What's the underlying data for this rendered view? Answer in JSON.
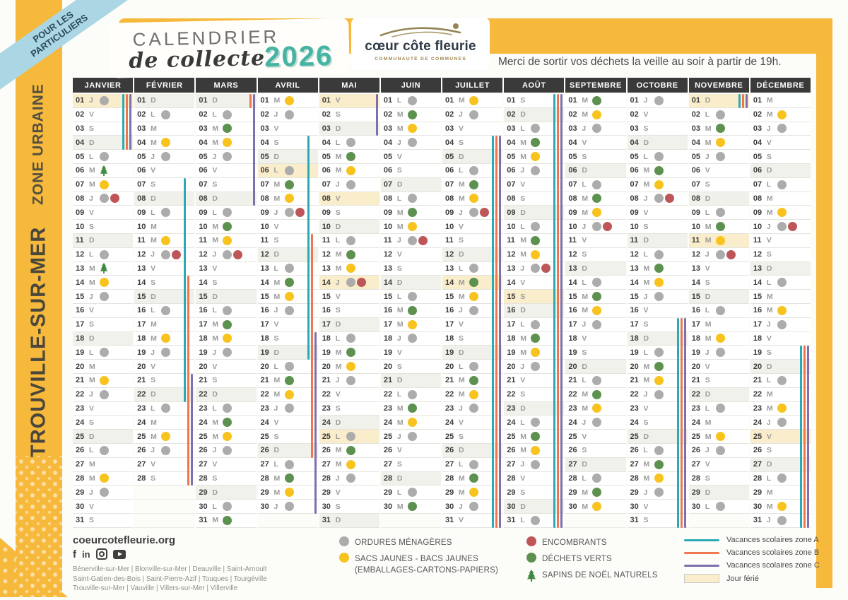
{
  "ribbon": "POUR LES PARTICULIERS",
  "sidebar": {
    "city": "TROUVILLE-SUR-MER",
    "zone": "ZONE URBAINE"
  },
  "header": {
    "title_line1": "CALENDRIER",
    "title_line2": "de collecte",
    "title_year": "2026",
    "logo_name": "cœur côte fleurie",
    "logo_sub": "COMMUNAUTÉ DE COMMUNES",
    "notice": "Merci de sortir vos déchets la veille au soir à partir de 19h."
  },
  "colors": {
    "band_yellow": "#F6B93C",
    "ribbon_blue": "#ABD7E4",
    "ordures": "#ACACAC",
    "sacs_jaunes": "#F8C31D",
    "dechets_verts": "#5D9150",
    "encombrants": "#BE5558",
    "sapins": "#3E8A42",
    "zone_a": "#2BAAB5",
    "zone_b": "#F0764F",
    "zone_c": "#7E6FAE",
    "jour_ferie": "#FAEDCB"
  },
  "calendar": {
    "months": [
      {
        "name": "JANVIER",
        "n": 31,
        "w": "JVSDLMMJVSDLMMJVSDLMMJVSDLMMJVS",
        "om": [
          1,
          5,
          8,
          12,
          15,
          19,
          22,
          26,
          29
        ],
        "rec": [
          7,
          14,
          21,
          28
        ],
        "dv": [],
        "enc": [
          8
        ],
        "sap": [
          6,
          13
        ],
        "hol": [
          1
        ],
        "vac": {
          "A": [
            [
              1,
              4
            ]
          ],
          "B": [
            [
              1,
              4
            ]
          ],
          "C": [
            [
              1,
              4
            ]
          ]
        }
      },
      {
        "name": "FÉVRIER",
        "n": 28,
        "w": "DLMMJVSDLMMJVSDLMMJVSDLMMJVS",
        "om": [
          2,
          5,
          9,
          12,
          16,
          19,
          23,
          26
        ],
        "rec": [
          4,
          11,
          18,
          25
        ],
        "dv": [],
        "enc": [
          12
        ],
        "sap": [],
        "hol": [],
        "vac": {
          "A": [
            [
              7,
              22
            ]
          ],
          "B": [
            [
              14,
              28
            ]
          ],
          "C": [
            [
              21,
              28
            ]
          ]
        }
      },
      {
        "name": "MARS",
        "n": 31,
        "w": "DLMMJVSDLMMJVSDLMMJVSDLMMJVSDLM",
        "om": [
          2,
          5,
          9,
          12,
          16,
          19,
          23,
          26,
          30
        ],
        "rec": [
          4,
          11,
          18,
          25
        ],
        "dv": [
          3,
          10,
          17,
          24,
          31
        ],
        "enc": [
          12
        ],
        "sap": [],
        "hol": [],
        "vac": {
          "B": [
            [
              1,
              1
            ]
          ],
          "C": [
            [
              1,
              8
            ]
          ]
        }
      },
      {
        "name": "AVRIL",
        "n": 30,
        "w": "MJVSDLMMJVSDLMMJVSDLMMJVSDLMMJ",
        "om": [
          2,
          6,
          9,
          13,
          16,
          20,
          23,
          27,
          30
        ],
        "rec": [
          1,
          8,
          15,
          22,
          29
        ],
        "dv": [
          7,
          14,
          21,
          28
        ],
        "enc": [
          9
        ],
        "sap": [],
        "hol": [
          6
        ],
        "vac": {
          "A": [
            [
              4,
              19
            ]
          ],
          "B": [
            [
              11,
              26
            ]
          ],
          "C": [
            [
              18,
              30
            ]
          ]
        }
      },
      {
        "name": "MAI",
        "n": 31,
        "w": "VSDLMMJVSDLMMJVSDLMMJVSDLMMJVSD",
        "om": [
          4,
          7,
          11,
          14,
          18,
          21,
          25,
          28
        ],
        "rec": [
          6,
          13,
          20,
          27
        ],
        "dv": [
          5,
          12,
          19,
          26
        ],
        "enc": [
          14
        ],
        "sap": [],
        "hol": [
          1,
          8,
          14,
          25
        ],
        "vac": {
          "C": [
            [
              1,
              3
            ]
          ]
        }
      },
      {
        "name": "JUIN",
        "n": 30,
        "w": "LMMJVSDLMMJVSDLMMJVSDLMMJVSDLM",
        "om": [
          1,
          4,
          8,
          11,
          15,
          18,
          22,
          25,
          29
        ],
        "rec": [
          3,
          10,
          17,
          24
        ],
        "dv": [
          2,
          9,
          16,
          23,
          30
        ],
        "enc": [
          11
        ],
        "sap": [],
        "hol": [],
        "vac": {}
      },
      {
        "name": "JUILLET",
        "n": 31,
        "w": "MJVSDLMMJVSDLMMJVSDLMMJVSDLMMJV",
        "om": [
          2,
          6,
          9,
          13,
          16,
          20,
          23,
          27,
          30
        ],
        "rec": [
          1,
          8,
          15,
          22,
          29
        ],
        "dv": [
          7,
          14,
          21,
          28
        ],
        "enc": [
          9
        ],
        "sap": [],
        "hol": [
          14
        ],
        "vac": {
          "A": [
            [
              4,
              31
            ]
          ],
          "B": [
            [
              4,
              31
            ]
          ],
          "C": [
            [
              4,
              31
            ]
          ]
        }
      },
      {
        "name": "AOÛT",
        "n": 31,
        "w": "SDLMMJVSDLMMJVSDLMMJVSDLMMJVSDL",
        "om": [
          3,
          6,
          10,
          13,
          17,
          20,
          24,
          27,
          31
        ],
        "rec": [
          5,
          12,
          19,
          26
        ],
        "dv": [
          4,
          11,
          18,
          25
        ],
        "enc": [
          13
        ],
        "sap": [],
        "hol": [
          15
        ],
        "vac": {
          "A": [
            [
              1,
              31
            ]
          ],
          "B": [
            [
              1,
              31
            ]
          ],
          "C": [
            [
              1,
              31
            ]
          ]
        }
      },
      {
        "name": "SEPTEMBRE",
        "n": 30,
        "w": "MMJVSDLMMJVSDLMMJVSDLMMJVSDLMM",
        "om": [
          3,
          7,
          10,
          14,
          17,
          21,
          24,
          28
        ],
        "rec": [
          2,
          9,
          16,
          23,
          30
        ],
        "dv": [
          1,
          8,
          15,
          22,
          29
        ],
        "enc": [
          10
        ],
        "sap": [],
        "hol": [],
        "vac": {}
      },
      {
        "name": "OCTOBRE",
        "n": 31,
        "w": "JVSDLMMJVSDLMMJVSDLMMJVSDLMMJVS",
        "om": [
          1,
          5,
          8,
          12,
          15,
          19,
          22,
          26,
          29
        ],
        "rec": [
          7,
          14,
          21,
          28
        ],
        "dv": [
          6,
          13,
          20,
          27
        ],
        "enc": [
          8
        ],
        "sap": [],
        "hol": [],
        "vac": {
          "A": [
            [
              17,
              31
            ]
          ],
          "B": [
            [
              17,
              31
            ]
          ],
          "C": [
            [
              17,
              31
            ]
          ]
        }
      },
      {
        "name": "NOVEMBRE",
        "n": 30,
        "w": "DLMMJVSDLMMJVSDLMMJVSDLMMJVSDL",
        "om": [
          2,
          5,
          9,
          12,
          16,
          19,
          23,
          26,
          30
        ],
        "rec": [
          4,
          11,
          18,
          25
        ],
        "dv": [
          3,
          10
        ],
        "enc": [
          12
        ],
        "sap": [],
        "hol": [
          1,
          11
        ],
        "vac": {
          "A": [
            [
              1,
              1
            ]
          ],
          "B": [
            [
              1,
              1
            ]
          ],
          "C": [
            [
              1,
              1
            ]
          ]
        }
      },
      {
        "name": "DÉCEMBRE",
        "n": 31,
        "w": "MMJVSDLMMJVSDLMMJVSDLMMJVSDLMMJ",
        "om": [
          3,
          7,
          10,
          14,
          17,
          21,
          24,
          28,
          31
        ],
        "rec": [
          2,
          9,
          16,
          23,
          30
        ],
        "dv": [],
        "enc": [
          10
        ],
        "sap": [],
        "hol": [
          25
        ],
        "vac": {
          "A": [
            [
              19,
              31
            ]
          ],
          "B": [
            [
              19,
              31
            ]
          ],
          "C": [
            [
              19,
              31
            ]
          ]
        }
      }
    ]
  },
  "footer": {
    "website": "coeurcotefleurie.org",
    "social": [
      "facebook",
      "linkedin",
      "instagram",
      "youtube"
    ],
    "communes_lines": [
      "Bénerville-sur-Mer | Blonville-sur-Mer | Deauville | Saint-Arnoult",
      "Saint-Gatien-des-Bois | Saint-Pierre-Azif | Touques | Tourgéville",
      "Trouville-sur-Mer | Vauville | Villers-sur-Mer | Villerville"
    ],
    "legend_col1": [
      {
        "id": "ordures",
        "type": "dot",
        "label": "ORDURES MÉNAGÈRES"
      },
      {
        "id": "sacs-jaunes",
        "type": "dot",
        "label": "SACS JAUNES - BACS JAUNES",
        "label2": "(EMBALLAGES-CARTONS-PAPIERS)"
      }
    ],
    "legend_col2": [
      {
        "id": "encombrants",
        "type": "dot",
        "label": "ENCOMBRANTS"
      },
      {
        "id": "dechets-verts",
        "type": "dot",
        "label": "DÉCHETS VERTS"
      },
      {
        "id": "sapins",
        "type": "tree",
        "label": "SAPINS DE NOËL NATURELS"
      }
    ],
    "legend_marks": [
      {
        "id": "zone-a",
        "type": "line",
        "label": "Vacances scolaires zone A"
      },
      {
        "id": "zone-b",
        "type": "line",
        "label": "Vacances scolaires zone B"
      },
      {
        "id": "zone-c",
        "type": "line",
        "label": "Vacances scolaires zone C"
      },
      {
        "id": "jour-ferie",
        "type": "box",
        "label": "Jour férié"
      }
    ]
  }
}
